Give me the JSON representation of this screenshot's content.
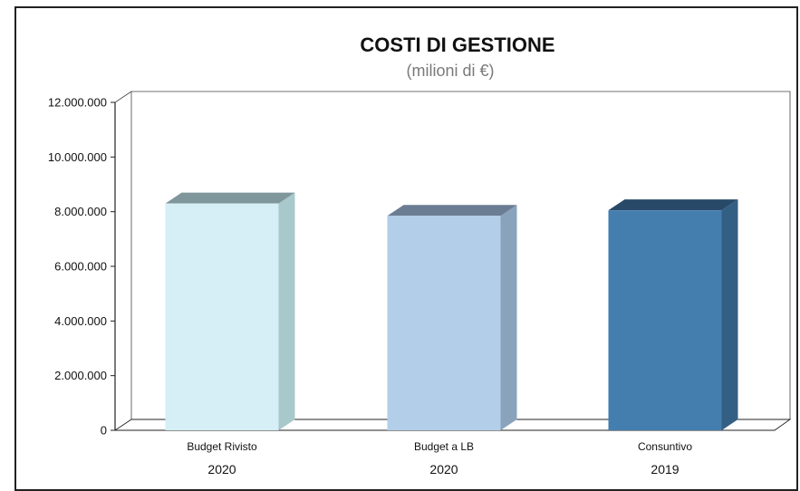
{
  "chart_data": {
    "type": "bar",
    "title": "COSTI DI GESTIONE",
    "subtitle": "(milioni di €)",
    "categories": [
      "Budget Rivisto",
      "Budget a LB",
      "Consuntivo"
    ],
    "category_years": [
      "2020",
      "2020",
      "2019"
    ],
    "values": [
      8300000,
      7850000,
      8050000
    ],
    "y_ticks": [
      "0",
      "2.000.000",
      "4.000.000",
      "6.000.000",
      "8.000.000",
      "10.000.000",
      "12.000.000"
    ],
    "ylim": [
      0,
      12000000
    ],
    "grid": false,
    "legend": "none",
    "bar_colors": [
      {
        "front": "#d6eef5",
        "side": "#a8c8cc",
        "top": "#7f979b"
      },
      {
        "front": "#b3cee9",
        "side": "#8aa3bd",
        "top": "#6a7d92"
      },
      {
        "front": "#447eaf",
        "side": "#345f85",
        "top": "#284a68"
      }
    ]
  }
}
